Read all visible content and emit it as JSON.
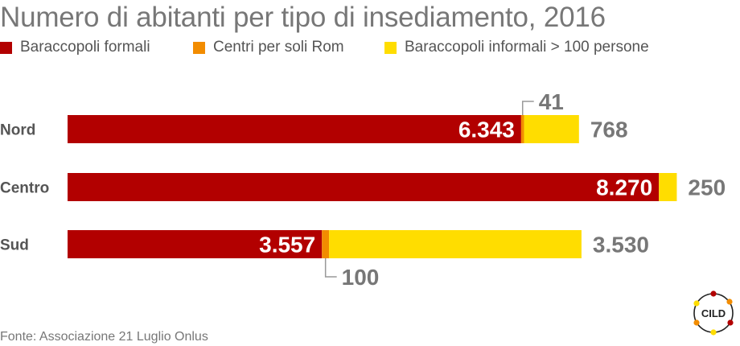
{
  "title": "Numero di abitanti per tipo di insediamento, 2016",
  "source": "Fonte: Associazione 21 Luglio Onlus",
  "logo_text": "CILD",
  "colors": {
    "formali": "#b20000",
    "rom": "#f28c00",
    "informali": "#ffdd00",
    "text": "#777777"
  },
  "chart_data": {
    "type": "bar",
    "orientation": "horizontal",
    "stacked": true,
    "title": "Numero di abitanti per tipo di insediamento, 2016",
    "categories": [
      "Nord",
      "Centro",
      "Sud"
    ],
    "series": [
      {
        "name": "Baraccopoli formali",
        "values": [
          6343,
          8270,
          3557
        ],
        "labels": [
          "6.343",
          "8.270",
          "3.557"
        ],
        "color": "#b20000"
      },
      {
        "name": "Centri per soli Rom",
        "values": [
          41,
          0,
          100
        ],
        "labels": [
          "41",
          "",
          "100"
        ],
        "color": "#f28c00"
      },
      {
        "name": "Baraccopoli informali > 100 persone",
        "values": [
          768,
          250,
          3530
        ],
        "labels": [
          "768",
          "250",
          "3.530"
        ],
        "color": "#ffdd00"
      }
    ],
    "legend": "top-left",
    "grid": false
  }
}
